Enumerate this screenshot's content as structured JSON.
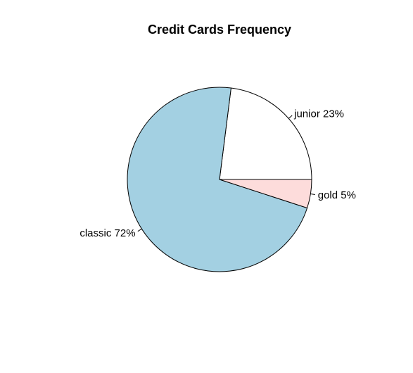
{
  "chart_data": {
    "type": "pie",
    "title": "Credit Cards Frequency",
    "slices": [
      {
        "label": "junior 23%",
        "value": 23,
        "color": "#ffffff"
      },
      {
        "label": "classic 72%",
        "value": 72,
        "color": "#a3d0e2"
      },
      {
        "label": "gold 5%",
        "value": 5,
        "color": "#fddcdb"
      }
    ],
    "start_angle_deg": 0,
    "direction": "counterclockwise"
  }
}
